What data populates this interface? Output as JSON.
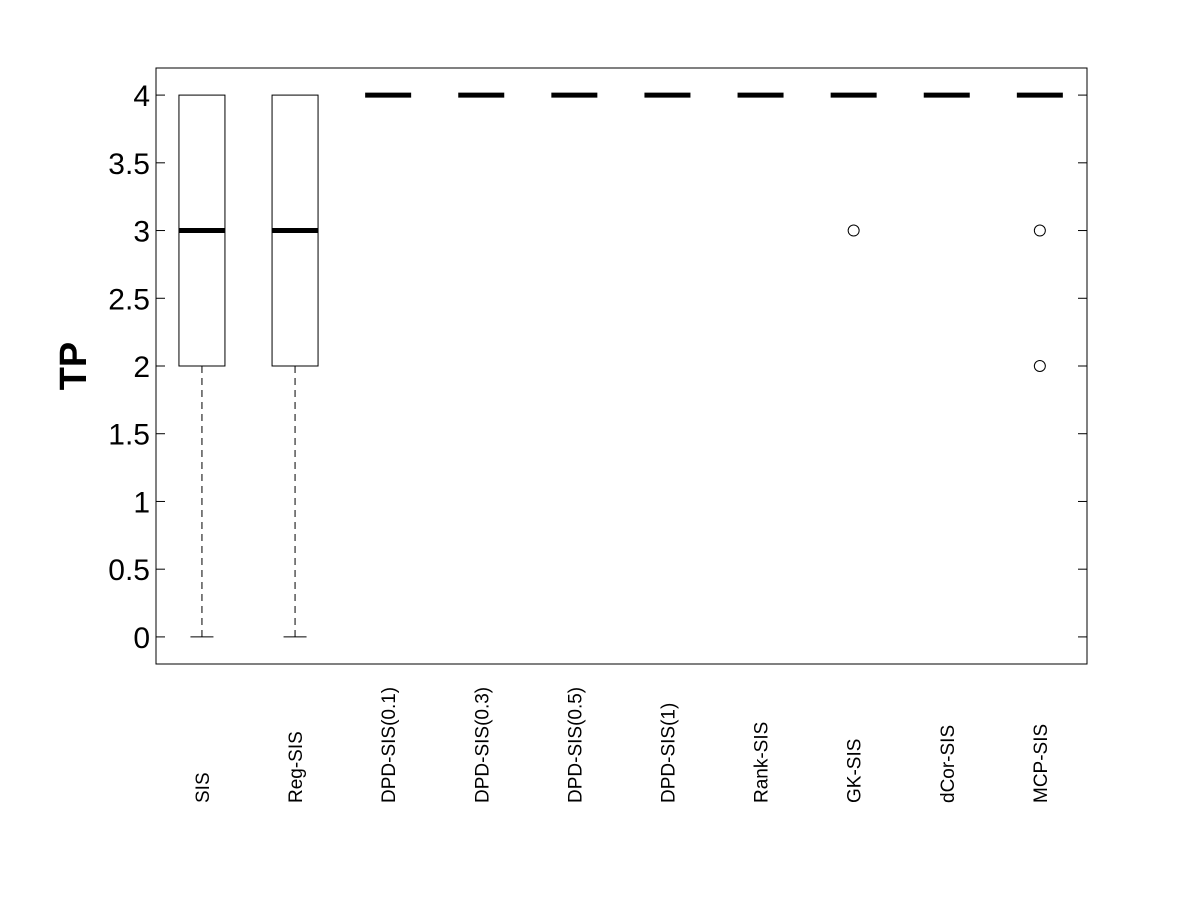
{
  "chart_data": {
    "type": "boxplot",
    "title": "",
    "xlabel": "",
    "ylabel": "TP",
    "ylim": [
      -0.2,
      4.2
    ],
    "yticks": [
      0,
      0.5,
      1,
      1.5,
      2,
      2.5,
      3,
      3.5,
      4
    ],
    "ytick_labels": [
      "0",
      "0.5",
      "1",
      "1.5",
      "2",
      "2.5",
      "3",
      "3.5",
      "4"
    ],
    "grid": false,
    "legend": "none",
    "categories": [
      "SIS",
      "Reg-SIS",
      "DPD-SIS(0.1)",
      "DPD-SIS(0.3)",
      "DPD-SIS(0.5)",
      "DPD-SIS(1)",
      "Rank-SIS",
      "GK-SIS",
      "dCor-SIS",
      "MCP-SIS"
    ],
    "boxes": [
      {
        "label": "SIS",
        "min": 0,
        "q1": 2,
        "median": 3,
        "q3": 4,
        "max": 4,
        "outliers": []
      },
      {
        "label": "Reg-SIS",
        "min": 0,
        "q1": 2,
        "median": 3,
        "q3": 4,
        "max": 4,
        "outliers": []
      },
      {
        "label": "DPD-SIS(0.1)",
        "min": 4,
        "q1": 4,
        "median": 4,
        "q3": 4,
        "max": 4,
        "outliers": []
      },
      {
        "label": "DPD-SIS(0.3)",
        "min": 4,
        "q1": 4,
        "median": 4,
        "q3": 4,
        "max": 4,
        "outliers": []
      },
      {
        "label": "DPD-SIS(0.5)",
        "min": 4,
        "q1": 4,
        "median": 4,
        "q3": 4,
        "max": 4,
        "outliers": []
      },
      {
        "label": "DPD-SIS(1)",
        "min": 4,
        "q1": 4,
        "median": 4,
        "q3": 4,
        "max": 4,
        "outliers": []
      },
      {
        "label": "Rank-SIS",
        "min": 4,
        "q1": 4,
        "median": 4,
        "q3": 4,
        "max": 4,
        "outliers": []
      },
      {
        "label": "GK-SIS",
        "min": 4,
        "q1": 4,
        "median": 4,
        "q3": 4,
        "max": 4,
        "outliers": [
          3
        ]
      },
      {
        "label": "dCor-SIS",
        "min": 4,
        "q1": 4,
        "median": 4,
        "q3": 4,
        "max": 4,
        "outliers": []
      },
      {
        "label": "MCP-SIS",
        "min": 4,
        "q1": 4,
        "median": 4,
        "q3": 4,
        "max": 4,
        "outliers": [
          3,
          2
        ]
      }
    ]
  }
}
